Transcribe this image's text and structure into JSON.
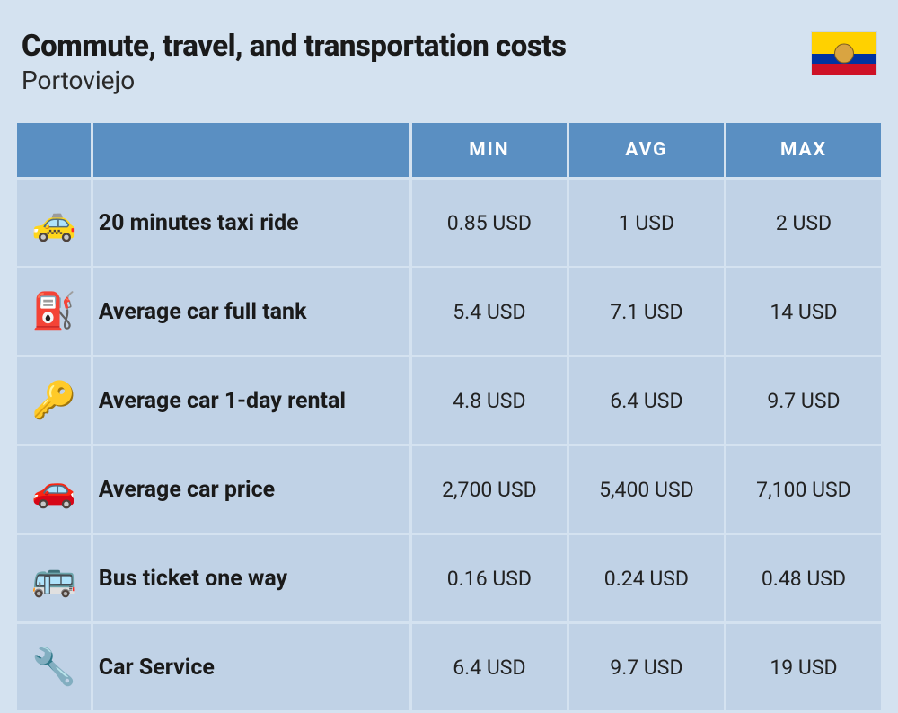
{
  "header": {
    "title": "Commute, travel, and transportation costs",
    "subtitle": "Portoviejo"
  },
  "flag": {
    "top_color": "#ffd100",
    "middle_color": "#0033a0",
    "bottom_color": "#ce1126",
    "emblem_color": "#d9a441"
  },
  "table": {
    "columns": [
      "MIN",
      "AVG",
      "MAX"
    ],
    "header_bg": "#5a8fc2",
    "header_fg": "#ffffff",
    "cell_bg": "#c0d2e6",
    "rows": [
      {
        "icon": "🚕",
        "label": "20 minutes taxi ride",
        "min": "0.85 USD",
        "avg": "1 USD",
        "max": "2 USD"
      },
      {
        "icon": "⛽",
        "label": "Average car full tank",
        "min": "5.4 USD",
        "avg": "7.1 USD",
        "max": "14 USD"
      },
      {
        "icon": "🔑",
        "label": "Average car 1-day rental",
        "min": "4.8 USD",
        "avg": "6.4 USD",
        "max": "9.7 USD"
      },
      {
        "icon": "🚗",
        "label": "Average car price",
        "min": "2,700 USD",
        "avg": "5,400 USD",
        "max": "7,100 USD"
      },
      {
        "icon": "🚌",
        "label": "Bus ticket one way",
        "min": "0.16 USD",
        "avg": "0.24 USD",
        "max": "0.48 USD"
      },
      {
        "icon": "🔧",
        "label": "Car Service",
        "min": "6.4 USD",
        "avg": "9.7 USD",
        "max": "19 USD"
      }
    ]
  },
  "page": {
    "background_color": "#d4e2f0",
    "title_fontsize": 33,
    "subtitle_fontsize": 28,
    "label_fontsize": 25,
    "value_fontsize": 23,
    "header_fontsize": 21
  }
}
